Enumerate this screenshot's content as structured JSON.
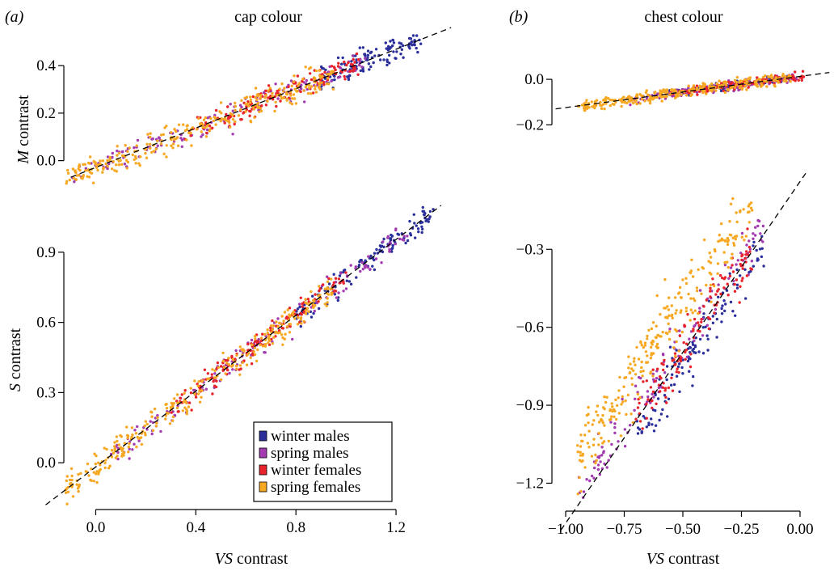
{
  "figure": {
    "panel_a_tag": "(a)",
    "panel_b_tag": "(b)",
    "panel_a_title": "cap colour",
    "panel_b_title": "chest colour"
  },
  "legend": {
    "items": [
      {
        "label": "winter males",
        "color": "#2b2f9c"
      },
      {
        "label": "spring males",
        "color": "#a23bb0"
      },
      {
        "label": "winter females",
        "color": "#e8232b"
      },
      {
        "label": "spring females",
        "color": "#f7a823"
      }
    ]
  },
  "chart_data": [
    {
      "id": "a-top",
      "type": "scatter",
      "title": "cap colour",
      "xlabel": "",
      "ylabel_var": "M",
      "ylabel_rest": " contrast",
      "xlim": [
        -0.15,
        1.4
      ],
      "ylim": [
        -0.1,
        0.54
      ],
      "yticks": [
        0.0,
        0.2,
        0.4
      ],
      "ytick_labels": [
        "0.0",
        "0.2",
        "0.4"
      ],
      "xticks": [],
      "trend": {
        "x0": -0.1,
        "y0": -0.07,
        "x1": 1.42,
        "y1": 0.56
      },
      "series": [
        {
          "name": "winter males",
          "color": "#2b2f9c",
          "x_range": [
            0.9,
            1.3
          ],
          "noise": 0.04,
          "n": 130
        },
        {
          "name": "spring males",
          "color": "#a23bb0",
          "x_range": [
            -0.1,
            1.1
          ],
          "noise": 0.04,
          "n": 150
        },
        {
          "name": "winter females",
          "color": "#e8232b",
          "x_range": [
            0.35,
            1.05
          ],
          "noise": 0.035,
          "n": 150
        },
        {
          "name": "spring females",
          "color": "#f7a823",
          "x_range": [
            -0.12,
            0.95
          ],
          "noise": 0.04,
          "n": 300
        }
      ]
    },
    {
      "id": "a-bottom",
      "type": "scatter",
      "xlabel_var": "VS",
      "xlabel_rest": " contrast",
      "ylabel_var": "S",
      "ylabel_rest": " contrast",
      "xlim": [
        -0.15,
        1.4
      ],
      "ylim": [
        -0.2,
        1.1
      ],
      "xticks": [
        0.0,
        0.4,
        0.8,
        1.2
      ],
      "xtick_labels": [
        "0.0",
        "0.4",
        "0.8",
        "1.2"
      ],
      "yticks": [
        0.0,
        0.3,
        0.6,
        0.9
      ],
      "ytick_labels": [
        "0.0",
        "0.3",
        "0.6",
        "0.9"
      ],
      "trend": {
        "x0": -0.2,
        "y0": -0.18,
        "x1": 1.38,
        "y1": 1.1
      },
      "series": [
        {
          "name": "winter males",
          "color": "#2b2f9c",
          "x_range": [
            0.8,
            1.35
          ],
          "noise": 0.04,
          "n": 130
        },
        {
          "name": "spring males",
          "color": "#a23bb0",
          "x_range": [
            0.05,
            1.25
          ],
          "noise": 0.04,
          "n": 150
        },
        {
          "name": "winter females",
          "color": "#e8232b",
          "x_range": [
            0.3,
            1.0
          ],
          "noise": 0.035,
          "n": 150
        },
        {
          "name": "spring females",
          "color": "#f7a823",
          "x_range": [
            -0.12,
            0.95
          ],
          "noise": 0.045,
          "n": 300
        }
      ]
    },
    {
      "id": "b-top",
      "type": "scatter",
      "title": "chest colour",
      "xlabel": "",
      "ylabel": "",
      "xlim": [
        -1.0,
        0.03
      ],
      "ylim": [
        -0.22,
        0.05
      ],
      "yticks": [
        -0.2,
        0.0
      ],
      "ytick_labels": [
        "−0.2",
        "0.0"
      ],
      "xticks": [],
      "trend": {
        "x0": -1.04,
        "y0": -0.13,
        "x1": 0.05,
        "y1": 0.03
      },
      "series": [
        {
          "name": "winter males",
          "color": "#2b2f9c",
          "x_range": [
            -0.6,
            -0.1
          ],
          "noise": 0.012,
          "n": 120
        },
        {
          "name": "spring males",
          "color": "#a23bb0",
          "x_range": [
            -0.75,
            -0.08
          ],
          "noise": 0.014,
          "n": 130
        },
        {
          "name": "winter females",
          "color": "#e8232b",
          "x_range": [
            -0.6,
            -0.05
          ],
          "noise": 0.012,
          "n": 130
        },
        {
          "name": "spring females",
          "color": "#f7a823",
          "x_range": [
            -0.95,
            -0.1
          ],
          "noise": 0.018,
          "n": 280
        }
      ]
    },
    {
      "id": "b-bottom",
      "type": "scatter",
      "xlabel_var": "VS",
      "xlabel_rest": " contrast",
      "ylabel": "",
      "xlim": [
        -1.0,
        0.0
      ],
      "ylim": [
        -1.32,
        -0.1
      ],
      "xticks": [
        -1.0,
        -0.75,
        -0.5,
        -0.25,
        0.0
      ],
      "xtick_labels": [
        "−1.00",
        "−0.75",
        "−0.50",
        "−0.25",
        "0.00"
      ],
      "yticks": [
        -1.2,
        -0.9,
        -0.6,
        -0.3
      ],
      "ytick_labels": [
        "−1.2",
        "−0.9",
        "−0.6",
        "−0.3"
      ],
      "trend": {
        "x0": -1.02,
        "y0": -1.38,
        "x1": 0.03,
        "y1": 0.0
      },
      "series": [
        {
          "name": "winter males",
          "color": "#2b2f9c",
          "x_range": [
            -0.7,
            -0.15
          ],
          "offset": -0.05,
          "noise": 0.07,
          "n": 120
        },
        {
          "name": "spring males",
          "color": "#a23bb0",
          "x_range": [
            -0.95,
            -0.15
          ],
          "offset": 0.05,
          "noise": 0.08,
          "n": 130
        },
        {
          "name": "winter females",
          "color": "#e8232b",
          "x_range": [
            -0.7,
            -0.2
          ],
          "offset": 0.02,
          "noise": 0.07,
          "n": 130
        },
        {
          "name": "spring females",
          "color": "#f7a823",
          "x_range": [
            -0.95,
            -0.2
          ],
          "offset": 0.18,
          "noise": 0.09,
          "n": 280
        }
      ]
    }
  ]
}
